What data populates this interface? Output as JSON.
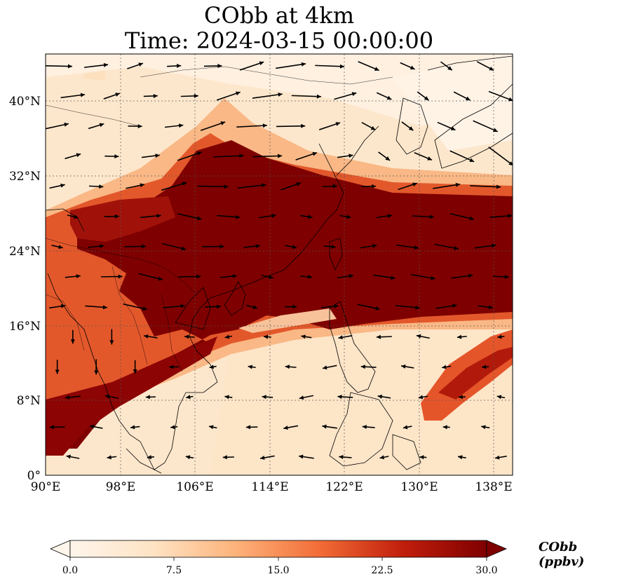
{
  "title": {
    "line1": "CObb at 4km",
    "line2": "Time: 2024-03-15 00:00:00"
  },
  "map": {
    "lon_range": [
      90,
      140
    ],
    "lat_range": [
      0,
      45
    ],
    "lon_ticks": [
      "90°E",
      "98°E",
      "106°E",
      "114°E",
      "122°E",
      "130°E",
      "138°E"
    ],
    "lat_ticks": [
      "0°",
      "8°N",
      "16°N",
      "24°N",
      "32°N",
      "40°N"
    ],
    "gridlines": "dotted"
  },
  "colorbar": {
    "label": "CObb (ppbv)",
    "ticks": [
      "0.0",
      "7.5",
      "15.0",
      "22.5",
      "30.0"
    ],
    "colors": [
      "#fff5eb",
      "#fdd4a8",
      "#fd9a5c",
      "#e0461a",
      "#a30f04",
      "#7f0000"
    ],
    "extend": "both"
  },
  "colors": {
    "background_fill": "#fde4c4",
    "plume_dark": "#7f0000",
    "plume_mid": "#c8321a",
    "plume_light": "#f7a173",
    "coastline": "#000000",
    "arrow": "#000000"
  }
}
